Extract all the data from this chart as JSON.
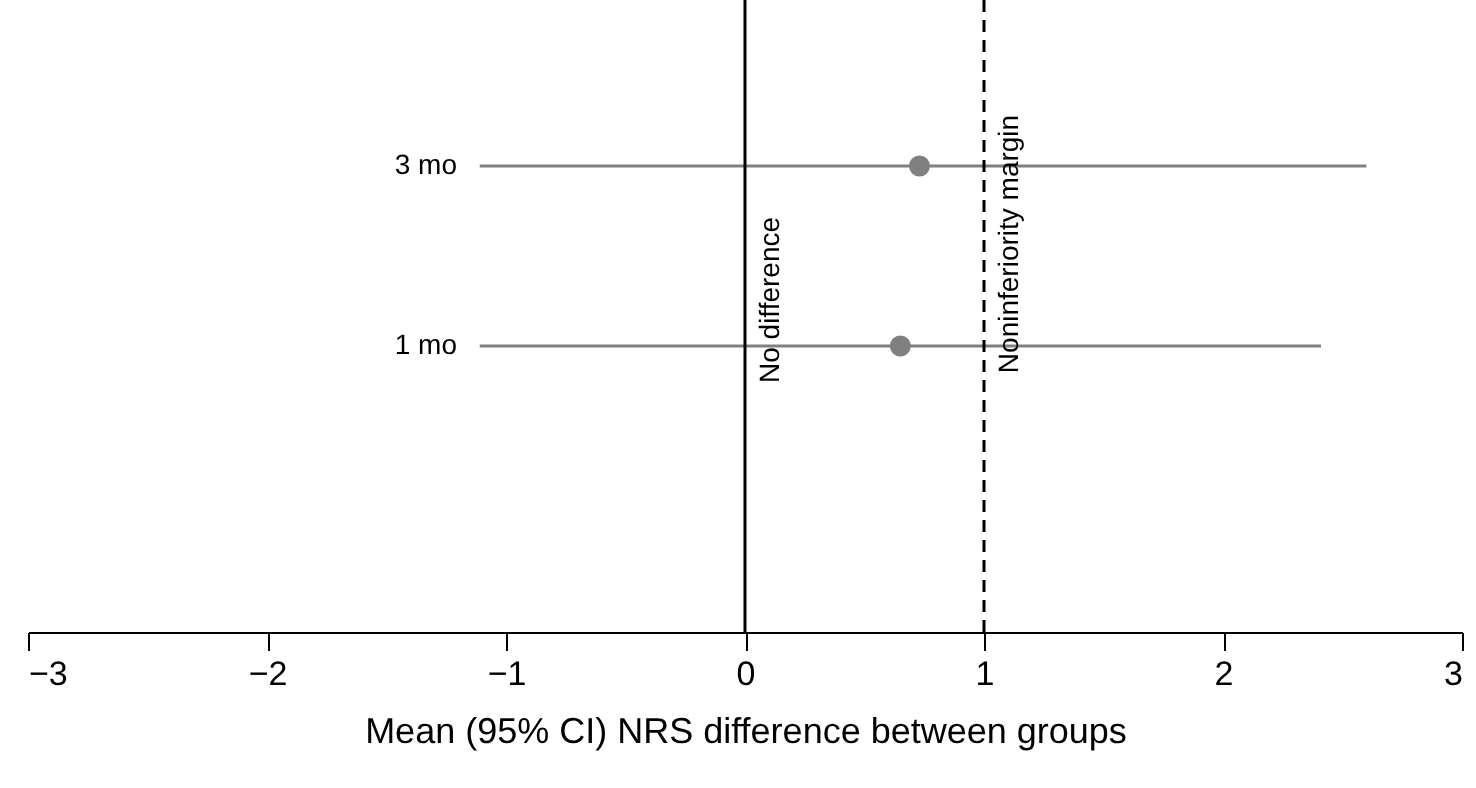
{
  "chart_data": {
    "type": "scatter",
    "orientation": "horizontal",
    "xlabel": "Mean (95% CI) NRS difference between groups",
    "categories": [
      "3 mo",
      "1 mo"
    ],
    "values": [
      0.73,
      0.65
    ],
    "errors": [
      [
        -1.11,
        2.6
      ],
      [
        -1.11,
        2.41
      ]
    ],
    "color": "#808080",
    "xlim": [
      -3,
      3
    ],
    "xticks": [
      {
        "value": -3,
        "label": "−3"
      },
      {
        "value": -2,
        "label": "−2"
      },
      {
        "value": -1,
        "label": "−1"
      },
      0,
      1,
      2,
      3
    ],
    "grid": false,
    "marker": "circle",
    "ref_lines": [
      {
        "axis": "x",
        "value": 0,
        "label": "No difference",
        "color": "#000000",
        "line_style": "solid"
      },
      {
        "axis": "x",
        "value": 1,
        "label": "Noninferiority margin",
        "color": "#000000",
        "line_style": "dashed"
      }
    ]
  }
}
